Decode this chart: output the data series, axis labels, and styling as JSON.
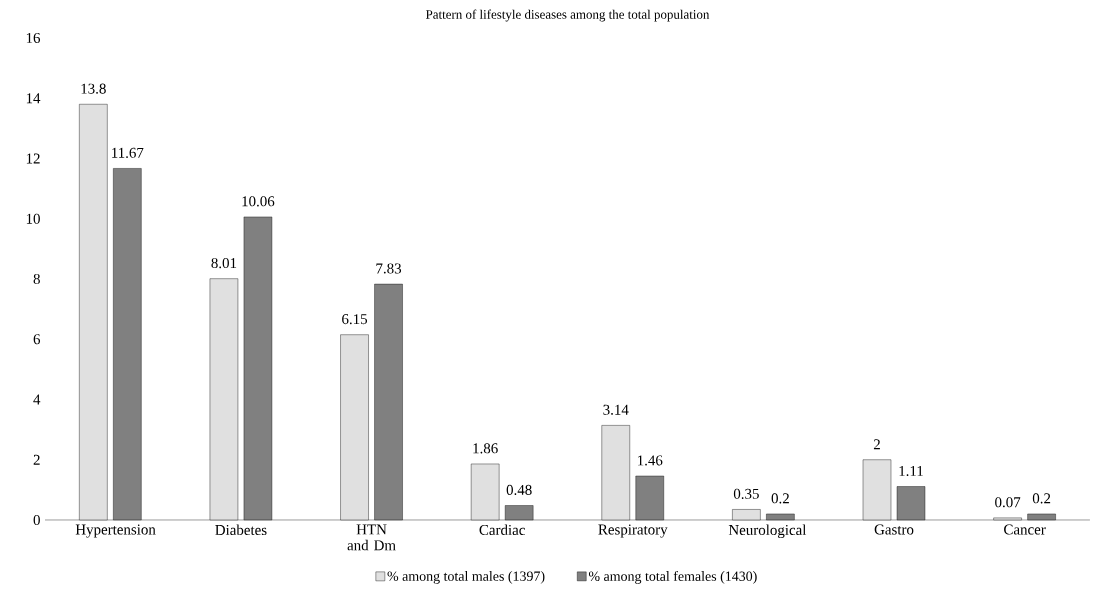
{
  "chart_data": {
    "type": "bar",
    "title": "Pattern of lifestyle diseases among the total population",
    "categories": [
      "Hypertension",
      "Diabetes",
      "HTN and Dm",
      "Cardiac",
      "Respiratory",
      "Neurological",
      "Gastro",
      "Cancer"
    ],
    "series": [
      {
        "name": "% among total males (1397)",
        "color": "#e0e0e0",
        "values": [
          13.8,
          8.01,
          6.15,
          1.86,
          3.14,
          0.35,
          2,
          0.07
        ]
      },
      {
        "name": "% among total females (1430)",
        "color": "#808080",
        "values": [
          11.67,
          10.06,
          7.83,
          0.48,
          1.46,
          0.2,
          1.11,
          0.2
        ]
      }
    ],
    "ylim": [
      0,
      16
    ],
    "yticks": [
      0,
      2,
      4,
      6,
      8,
      10,
      12,
      14,
      16
    ],
    "data_labels": true,
    "legend": "bottom",
    "grid": false
  }
}
